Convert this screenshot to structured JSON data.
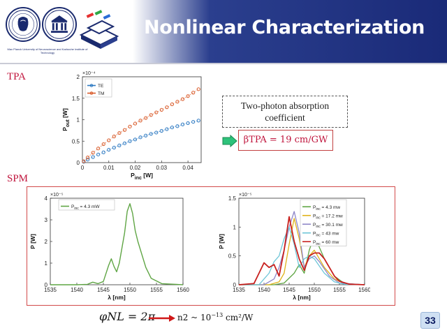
{
  "header": {
    "title": "Nonlinear Characterization",
    "institution_text": "Max Planck University of Neuroscience and Karlsruhe Institute of Technology"
  },
  "sections": {
    "tpa": "TPA",
    "spm": "SPM"
  },
  "tpa_note": {
    "line1": "Two-photon absorption",
    "line2": "coefficient",
    "beta": "βTPA = 19 cm/GW"
  },
  "formulas": {
    "phase": "φNL = 2π",
    "n2": "n2 ~ 10",
    "n2_exp": "−13",
    "n2_unit": " cm²/W"
  },
  "page_number": "33",
  "colors": {
    "te": "#2e7ac2",
    "tm": "#d95b2a",
    "green": "#5fa544",
    "accent": "#c0143c",
    "header": "#1a2a78"
  },
  "chart_data": [
    {
      "type": "scatter",
      "xlabel": "P_inc [W]",
      "ylabel": "P_out [W]",
      "y_multiplier": "×10⁻⁴",
      "xlim": [
        0,
        0.045
      ],
      "ylim": [
        0,
        2
      ],
      "xticks": [
        0,
        0.01,
        0.02,
        0.03,
        0.04
      ],
      "yticks": [
        0,
        0.5,
        1,
        1.5,
        2
      ],
      "legend": "top-left",
      "series": [
        {
          "name": "TE",
          "x": [
            0.0005,
            0.002,
            0.004,
            0.006,
            0.008,
            0.01,
            0.012,
            0.014,
            0.016,
            0.018,
            0.02,
            0.022,
            0.024,
            0.026,
            0.028,
            0.03,
            0.032,
            0.034,
            0.036,
            0.038,
            0.04,
            0.042,
            0.044
          ],
          "y": [
            0.02,
            0.07,
            0.13,
            0.19,
            0.24,
            0.3,
            0.35,
            0.4,
            0.45,
            0.5,
            0.54,
            0.59,
            0.63,
            0.67,
            0.7,
            0.74,
            0.78,
            0.82,
            0.85,
            0.89,
            0.92,
            0.95,
            0.98
          ]
        },
        {
          "name": "TM",
          "x": [
            0.0005,
            0.002,
            0.004,
            0.006,
            0.008,
            0.01,
            0.012,
            0.014,
            0.016,
            0.018,
            0.02,
            0.022,
            0.024,
            0.026,
            0.028,
            0.03,
            0.032,
            0.034,
            0.036,
            0.038,
            0.04,
            0.042,
            0.044
          ],
          "y": [
            0.03,
            0.12,
            0.23,
            0.33,
            0.43,
            0.52,
            0.61,
            0.69,
            0.76,
            0.84,
            0.91,
            0.98,
            1.04,
            1.11,
            1.17,
            1.23,
            1.29,
            1.36,
            1.42,
            1.48,
            1.55,
            1.63,
            1.71
          ]
        }
      ]
    },
    {
      "type": "line",
      "xlabel": "λ [nm]",
      "ylabel": "P [W]",
      "y_multiplier": "×10⁻⁵",
      "xlim": [
        1535,
        1560
      ],
      "ylim": [
        0,
        4
      ],
      "xticks": [
        1535,
        1540,
        1545,
        1550,
        1555,
        1560
      ],
      "yticks": [
        0,
        1,
        2,
        3,
        4
      ],
      "legend": "top-left",
      "series": [
        {
          "name": "P_inc = 4.3 mW",
          "x": [
            1535,
            1540,
            1542,
            1543,
            1544,
            1545,
            1546,
            1546.5,
            1547,
            1547.5,
            1548,
            1549,
            1549.5,
            1550,
            1550.5,
            1551,
            1551.5,
            1552,
            1553,
            1554,
            1556,
            1560
          ],
          "y": [
            0,
            0,
            0.02,
            0.12,
            0.05,
            0.15,
            0.9,
            1.2,
            0.85,
            0.6,
            1.0,
            2.4,
            3.4,
            3.75,
            3.3,
            2.5,
            2.0,
            1.6,
            0.8,
            0.3,
            0.05,
            0
          ]
        }
      ]
    },
    {
      "type": "line",
      "xlabel": "λ [nm]",
      "ylabel": "P [W]",
      "y_multiplier": "×10⁻⁵",
      "xlim": [
        1535,
        1560
      ],
      "ylim": [
        0,
        1.5
      ],
      "xticks": [
        1535,
        1540,
        1545,
        1550,
        1555,
        1560
      ],
      "yticks": [
        0,
        0.5,
        1,
        1.5
      ],
      "legend": "top-right",
      "series": [
        {
          "name": "P_inc = 4.3 mw",
          "color": "#5fa544",
          "x": [
            1535,
            1542,
            1544,
            1546,
            1547,
            1548,
            1549,
            1550,
            1551,
            1552,
            1554,
            1556,
            1560
          ],
          "y": [
            0,
            0,
            0.03,
            0.2,
            0.35,
            0.2,
            0.6,
            0.85,
            0.65,
            0.45,
            0.15,
            0.02,
            0
          ]
        },
        {
          "name": "P_inc = 17.2 mw",
          "color": "#e0b21a",
          "x": [
            1535,
            1541,
            1543,
            1544,
            1545,
            1546,
            1547,
            1548,
            1549,
            1550,
            1551,
            1552,
            1554,
            1556,
            1560
          ],
          "y": [
            0,
            0,
            0.05,
            0.2,
            0.7,
            1.15,
            0.8,
            0.3,
            0.5,
            0.6,
            0.45,
            0.3,
            0.1,
            0.02,
            0
          ]
        },
        {
          "name": "P_inc = 30.1 mw",
          "color": "#8e86c8",
          "x": [
            1535,
            1540,
            1542,
            1543,
            1544,
            1545,
            1546,
            1547,
            1548,
            1549,
            1550,
            1551,
            1553,
            1555,
            1560
          ],
          "y": [
            0,
            0,
            0.1,
            0.3,
            0.6,
            1.0,
            1.27,
            0.9,
            0.3,
            0.45,
            0.5,
            0.4,
            0.15,
            0.03,
            0
          ]
        },
        {
          "name": "P_inc = 43 mw",
          "color": "#6ec6d8",
          "x": [
            1535,
            1539,
            1541,
            1542,
            1543,
            1544,
            1545,
            1546,
            1547,
            1548,
            1549,
            1550,
            1552,
            1554,
            1556,
            1560
          ],
          "y": [
            0,
            0,
            0.2,
            0.4,
            0.5,
            0.8,
            1.0,
            0.7,
            0.3,
            0.45,
            0.5,
            0.45,
            0.2,
            0.05,
            0.01,
            0
          ]
        },
        {
          "name": "P_inc = 60 mw",
          "color": "#c8201e",
          "x": [
            1535,
            1538,
            1539,
            1540,
            1541,
            1542,
            1543,
            1544,
            1545,
            1546,
            1547,
            1548,
            1549,
            1550,
            1551,
            1552,
            1553,
            1554,
            1555,
            1557,
            1560
          ],
          "y": [
            0,
            0.02,
            0.2,
            0.38,
            0.3,
            0.35,
            0.15,
            0.6,
            1.18,
            0.75,
            0.45,
            0.25,
            0.5,
            0.55,
            0.55,
            0.45,
            0.3,
            0.15,
            0.06,
            0.01,
            0
          ]
        }
      ]
    }
  ]
}
